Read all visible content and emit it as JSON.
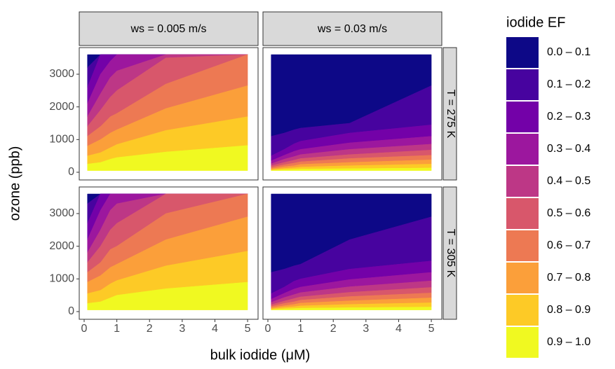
{
  "chart_data": {
    "type": "contour",
    "x_label": "bulk iodide (μM)",
    "y_label": "ozone (ppb)",
    "legend_title": "iodide EF",
    "legend": [
      {
        "label": "0.0 – 0.1",
        "color": "#0d0887"
      },
      {
        "label": "0.1 – 0.2",
        "color": "#47039f"
      },
      {
        "label": "0.2 – 0.3",
        "color": "#7301a8"
      },
      {
        "label": "0.3 – 0.4",
        "color": "#9c179e"
      },
      {
        "label": "0.4 – 0.5",
        "color": "#bd3786"
      },
      {
        "label": "0.5 – 0.6",
        "color": "#d8576b"
      },
      {
        "label": "0.6 – 0.7",
        "color": "#ed7953"
      },
      {
        "label": "0.7 – 0.8",
        "color": "#fb9f3a"
      },
      {
        "label": "0.8 – 0.9",
        "color": "#fdca26"
      },
      {
        "label": "0.9 – 1.0",
        "color": "#f0f921"
      }
    ],
    "columns": [
      "ws = 0.005 m/s",
      "ws = 0.03 m/s"
    ],
    "rows": [
      "T = 275 K",
      "T = 305 K"
    ],
    "xlim": [
      -0.15,
      5.32
    ],
    "xticks": [
      0,
      1,
      2,
      3,
      4,
      5
    ],
    "ylim": [
      -236,
      3814
    ],
    "yticks": [
      0,
      1000,
      2000,
      3000
    ],
    "x": [
      0.1,
      0.5,
      0.8,
      1,
      2.5,
      5
    ],
    "y_range": [
      50,
      3600
    ],
    "panels": [
      {
        "col": 0,
        "row": 0,
        "boundaries": [
          [
            3200,
            3600,
            3600,
            3600,
            3600,
            3600
          ],
          [
            2600,
            3600,
            3600,
            3600,
            3600,
            3600
          ],
          [
            2100,
            3000,
            3400,
            3600,
            3600,
            3600
          ],
          [
            1700,
            2400,
            2900,
            3100,
            3600,
            3600
          ],
          [
            1400,
            1900,
            2300,
            2500,
            3500,
            3600
          ],
          [
            1100,
            1400,
            1700,
            1800,
            2700,
            3600
          ],
          [
            800,
            1000,
            1200,
            1300,
            1950,
            2650
          ],
          [
            500,
            600,
            750,
            850,
            1280,
            1700
          ],
          [
            250,
            300,
            400,
            450,
            620,
            820
          ]
        ]
      },
      {
        "col": 1,
        "row": 0,
        "boundaries": [
          [
            1100,
            1200,
            1300,
            1350,
            1500,
            2650
          ],
          [
            500,
            700,
            870,
            950,
            1200,
            1450
          ],
          [
            350,
            520,
            640,
            700,
            900,
            1100
          ],
          [
            260,
            400,
            480,
            540,
            700,
            860
          ],
          [
            200,
            300,
            370,
            420,
            540,
            680
          ],
          [
            150,
            230,
            280,
            320,
            420,
            520
          ],
          [
            110,
            170,
            200,
            240,
            300,
            380
          ],
          [
            80,
            120,
            140,
            160,
            200,
            250
          ],
          [
            60,
            80,
            90,
            100,
            110,
            130
          ]
        ]
      },
      {
        "col": 0,
        "row": 1,
        "boundaries": [
          [
            3300,
            3600,
            3600,
            3600,
            3600,
            3600
          ],
          [
            2700,
            3600,
            3600,
            3600,
            3600,
            3600
          ],
          [
            2200,
            3100,
            3600,
            3600,
            3600,
            3600
          ],
          [
            1800,
            2500,
            3100,
            3300,
            3600,
            3600
          ],
          [
            1500,
            2000,
            2500,
            2700,
            3600,
            3600
          ],
          [
            1200,
            1500,
            1900,
            2000,
            3000,
            3600
          ],
          [
            900,
            1100,
            1350,
            1450,
            2200,
            2900
          ],
          [
            550,
            650,
            850,
            950,
            1400,
            1850
          ],
          [
            250,
            300,
            420,
            500,
            700,
            900
          ]
        ]
      },
      {
        "col": 1,
        "row": 1,
        "boundaries": [
          [
            1200,
            1300,
            1400,
            1450,
            2200,
            2900
          ],
          [
            550,
            750,
            930,
            1000,
            1300,
            1550
          ],
          [
            380,
            560,
            690,
            750,
            980,
            1200
          ],
          [
            280,
            430,
            520,
            580,
            760,
            940
          ],
          [
            210,
            320,
            400,
            450,
            590,
            740
          ],
          [
            160,
            250,
            300,
            350,
            460,
            570
          ],
          [
            120,
            180,
            220,
            260,
            330,
            420
          ],
          [
            85,
            130,
            150,
            175,
            220,
            270
          ],
          [
            60,
            85,
            95,
            105,
            120,
            140
          ]
        ]
      }
    ]
  }
}
